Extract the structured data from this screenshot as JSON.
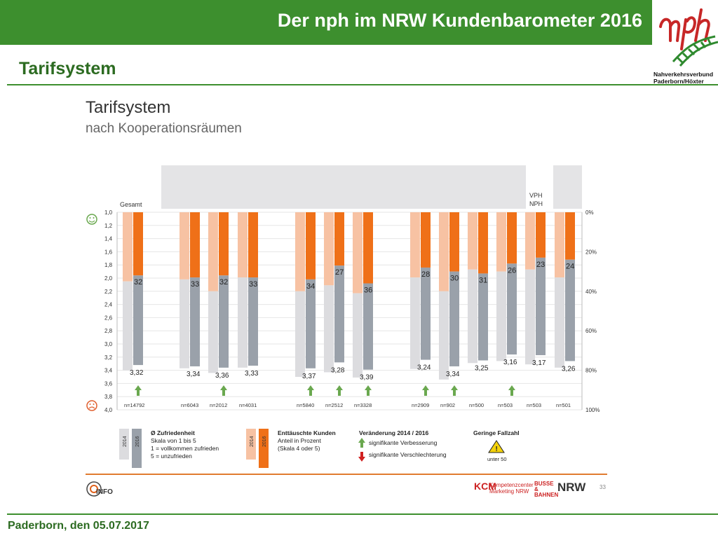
{
  "header": {
    "title": "Der nph im NRW Kundenbarometer 2016",
    "org_name_line1": "Nahverkehrsverbund",
    "org_name_line2": "Paderborn/Höxter"
  },
  "section_title": "Tarifsystem",
  "footer": {
    "text": "Paderborn, den 05.07.2017"
  },
  "colors": {
    "green": "#3d8f2e",
    "orange": "#ef7018",
    "light_orange": "#f7c2a3",
    "gray": "#9aa1aa",
    "light_gray": "#dcdcdf"
  },
  "chart_data": {
    "type": "bar",
    "title": "Tarifsystem",
    "subtitle": "nach Kooperationsräumen",
    "y_left_ticks": [
      "1,0",
      "1,2",
      "1,4",
      "1,6",
      "1,8",
      "2,0",
      "2,2",
      "2,4",
      "2,6",
      "2,8",
      "3,0",
      "3,2",
      "3,4",
      "3,6",
      "3,8",
      "4,0"
    ],
    "y_left_range": [
      1.0,
      4.0
    ],
    "y_right_ticks": [
      "0%",
      "20%",
      "40%",
      "60%",
      "80%",
      "100%"
    ],
    "y_right_range": [
      0,
      100
    ],
    "group_labels": {
      "gesamt": "Gesamt",
      "vph": "VPH\nNPH"
    },
    "categories": [
      {
        "n": "n=14792",
        "zufriedenheit_2014": 3.4,
        "zufriedenheit_2016": 3.32,
        "enttaeuscht_2014": 35,
        "enttaeuscht_2016": 32,
        "arrow": "up"
      },
      {
        "n": "n=6043",
        "zufriedenheit_2014": 3.37,
        "zufriedenheit_2016": 3.34,
        "enttaeuscht_2014": 34,
        "enttaeuscht_2016": 33,
        "arrow": "none"
      },
      {
        "n": "n=2012",
        "zufriedenheit_2014": 3.44,
        "zufriedenheit_2016": 3.36,
        "enttaeuscht_2014": 40,
        "enttaeuscht_2016": 32,
        "arrow": "up"
      },
      {
        "n": "n=4031",
        "zufriedenheit_2014": 3.36,
        "zufriedenheit_2016": 3.33,
        "enttaeuscht_2014": 33,
        "enttaeuscht_2016": 33,
        "arrow": "none"
      },
      {
        "n": "n=5840",
        "zufriedenheit_2014": 3.5,
        "zufriedenheit_2016": 3.37,
        "enttaeuscht_2014": 40,
        "enttaeuscht_2016": 34,
        "arrow": "up"
      },
      {
        "n": "n=2512",
        "zufriedenheit_2014": 3.43,
        "zufriedenheit_2016": 3.28,
        "enttaeuscht_2014": 37,
        "enttaeuscht_2016": 27,
        "arrow": "up"
      },
      {
        "n": "n=3328",
        "zufriedenheit_2014": 3.51,
        "zufriedenheit_2016": 3.39,
        "enttaeuscht_2014": 41,
        "enttaeuscht_2016": 36,
        "arrow": "up"
      },
      {
        "n": "n=2909",
        "zufriedenheit_2014": 3.38,
        "zufriedenheit_2016": 3.24,
        "enttaeuscht_2014": 33,
        "enttaeuscht_2016": 28,
        "arrow": "up"
      },
      {
        "n": "n=902",
        "zufriedenheit_2014": 3.54,
        "zufriedenheit_2016": 3.34,
        "enttaeuscht_2014": 40,
        "enttaeuscht_2016": 30,
        "arrow": "up"
      },
      {
        "n": "n=500",
        "zufriedenheit_2014": 3.29,
        "zufriedenheit_2016": 3.25,
        "enttaeuscht_2014": 29,
        "enttaeuscht_2016": 31,
        "arrow": "none"
      },
      {
        "n": "n=503",
        "zufriedenheit_2014": 3.26,
        "zufriedenheit_2016": 3.16,
        "enttaeuscht_2014": 30,
        "enttaeuscht_2016": 26,
        "arrow": "up"
      },
      {
        "n": "n=503",
        "zufriedenheit_2014": 3.31,
        "zufriedenheit_2016": 3.17,
        "enttaeuscht_2014": 29,
        "enttaeuscht_2016": 23,
        "arrow": "none"
      },
      {
        "n": "n=501",
        "zufriedenheit_2014": 3.36,
        "zufriedenheit_2016": 3.26,
        "enttaeuscht_2014": 33,
        "enttaeuscht_2016": 24,
        "arrow": "none"
      }
    ],
    "value_labels_zufriedenheit": [
      "3,32",
      "3,34",
      "3,36",
      "3,33",
      "3,37",
      "3,28",
      "3,39",
      "3,24",
      "3,34",
      "3,25",
      "3,16",
      "3,17",
      "3,26"
    ],
    "value_labels_enttaeuscht": [
      "32",
      "33",
      "32",
      "33",
      "34",
      "27",
      "36",
      "28",
      "30",
      "31",
      "26",
      "23",
      "24"
    ],
    "legend": {
      "year_2014": "2014",
      "year_2016": "2016",
      "zufriedenheit_title": "Ø Zufriedenheit",
      "zufriedenheit_lines": [
        "Skala von 1 bis 5",
        "1 = vollkommen zufrieden",
        "5 = unzufrieden"
      ],
      "enttaeuscht_title": "Enttäuschte Kunden",
      "enttaeuscht_lines": [
        "Anteil in Prozent",
        "(Skala 4 oder 5)"
      ],
      "veraenderung_title": "Veränderung 2014 / 2016",
      "verbesserung": "signifikante Verbesserung",
      "verschlechterung": "signifikante Verschlechterung",
      "fallzahl_title": "Geringe Fallzahl",
      "fallzahl_note": "unter 50"
    }
  },
  "bottom_logos": {
    "info": "INFO",
    "kcm": "KCM",
    "kcm_sub": "Kompetenzcenter Marketing NRW",
    "busse_bahnen": "BUSSE & BAHNEN",
    "nrw": "NRW",
    "page_number": "33"
  }
}
